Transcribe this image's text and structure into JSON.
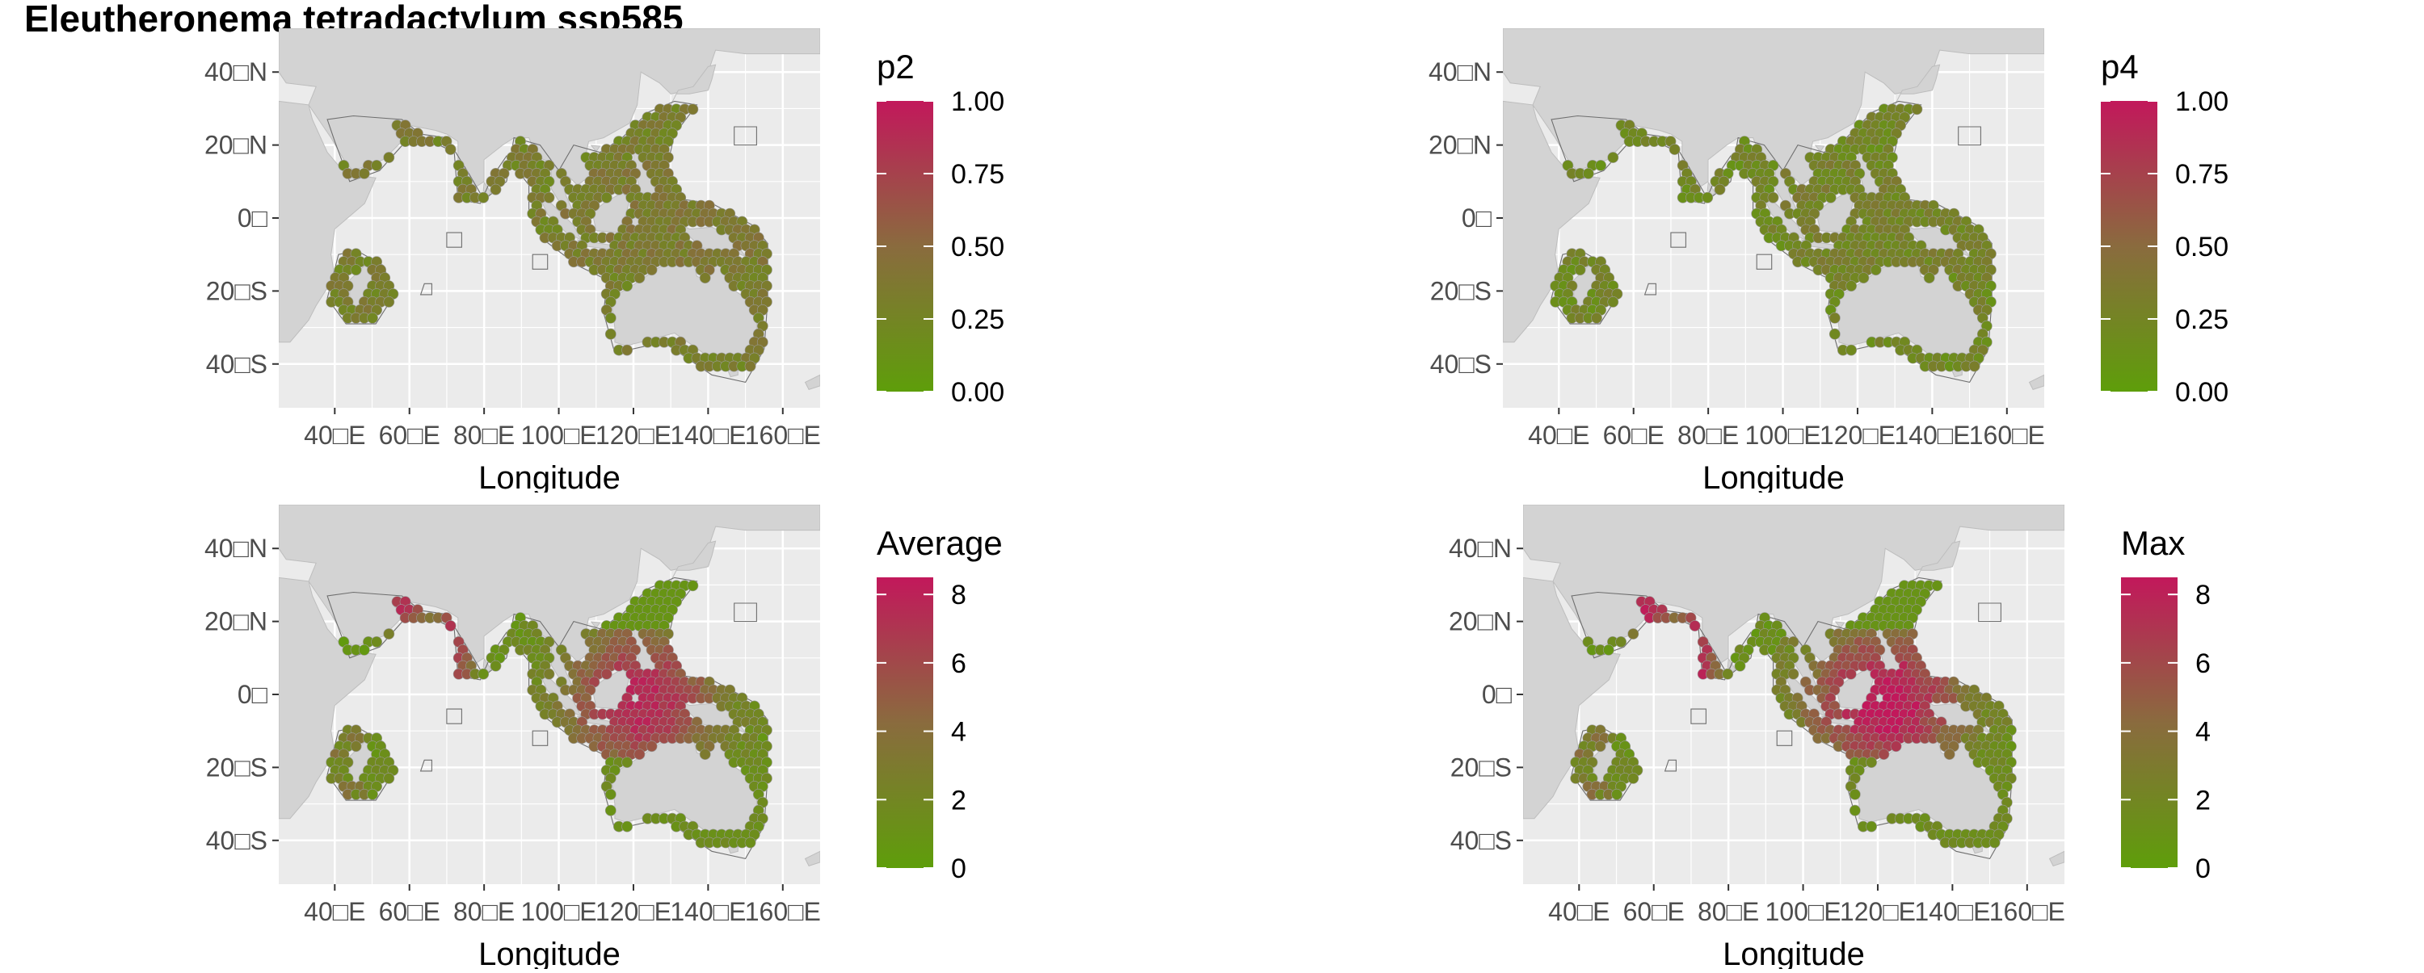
{
  "title": "Eleutheronema tetradactylum ssp585",
  "colors": {
    "panel_bg": "#ebebeb",
    "land": "#d3d3d3",
    "land_stroke": "#bdbdbd",
    "zone_stroke": "#6e6e6e",
    "grid": "#ffffff",
    "low": "#5e9e0a",
    "mid": "#8a6b3e",
    "high": "#c2185b",
    "axis_text": "#4d4d4d"
  },
  "panels": [
    {
      "legend_title": "p2",
      "legend_ticks": [
        "1.00",
        "0.75",
        "0.50",
        "0.25",
        "0.00"
      ],
      "legend_range": [
        0,
        1
      ],
      "xlabel": "Longitude",
      "x_ticks": [
        "40□E",
        "60□E",
        "80□E",
        "100□E",
        "120□E",
        "140□E",
        "160□E"
      ],
      "y_ticks": [
        "40□N",
        "20□N",
        "0□",
        "20□S",
        "40□S"
      ],
      "value_summary": {
        "mean": 0.3,
        "max": 0.45
      }
    },
    {
      "legend_title": "p4",
      "legend_ticks": [
        "1.00",
        "0.75",
        "0.50",
        "0.25",
        "0.00"
      ],
      "legend_range": [
        0,
        1
      ],
      "xlabel": "Longitude",
      "x_ticks": [
        "40□E",
        "60□E",
        "80□E",
        "100□E",
        "120□E",
        "140□E",
        "160□E"
      ],
      "y_ticks": [
        "40□N",
        "20□N",
        "0□",
        "20□S",
        "40□S"
      ],
      "value_summary": {
        "mean": 0.22,
        "max": 0.38
      }
    },
    {
      "legend_title": "Average",
      "legend_ticks": [
        "8",
        "6",
        "4",
        "2",
        "0"
      ],
      "legend_range": [
        0,
        8.5
      ],
      "xlabel": "Longitude",
      "x_ticks": [
        "40□E",
        "60□E",
        "80□E",
        "100□E",
        "120□E",
        "140□E",
        "160□E"
      ],
      "y_ticks": [
        "40□N",
        "20□N",
        "0□",
        "20□S",
        "40□S"
      ],
      "value_summary": {
        "mean": 4.5,
        "max": 8
      }
    },
    {
      "legend_title": "Max",
      "legend_ticks": [
        "8",
        "6",
        "4",
        "2",
        "0"
      ],
      "legend_range": [
        0,
        8.5
      ],
      "xlabel": "Longitude",
      "x_ticks": [
        "40□E",
        "60□E",
        "80□E",
        "100□E",
        "120□E",
        "140□E",
        "160□E"
      ],
      "y_ticks": [
        "40□N",
        "20□N",
        "0□",
        "20□S",
        "40□S"
      ],
      "value_summary": {
        "mean": 5.2,
        "max": 8.5
      }
    }
  ]
}
